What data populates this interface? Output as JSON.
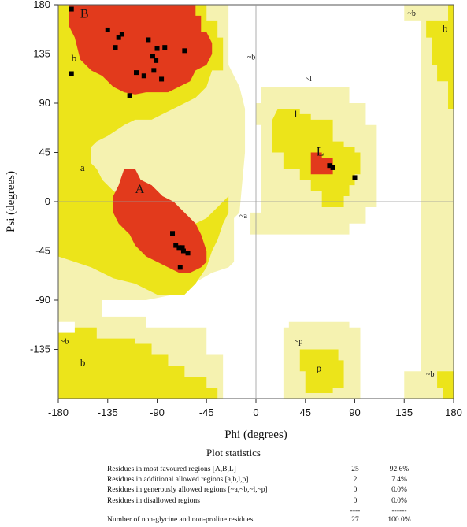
{
  "chart_data": {
    "type": "scatter",
    "title": "",
    "xlabel": "Phi (degrees)",
    "ylabel": "Psi (degrees)",
    "xlim": [
      -180,
      180
    ],
    "ylim": [
      -180,
      180
    ],
    "xticks": [
      -180,
      -135,
      -90,
      -45,
      0,
      45,
      90,
      135,
      180
    ],
    "yticks": [
      180,
      135,
      90,
      45,
      0,
      -45,
      -90,
      -135
    ],
    "grid": false,
    "colors": {
      "most_favoured": "#e23a1c",
      "additional": "#ece41a",
      "generous": "#f5f2b0",
      "disallowed": "#ffffff",
      "point": "#000000"
    },
    "region_labels": [
      {
        "text": "B",
        "phi": -160,
        "psi": 168
      },
      {
        "text": "b",
        "phi": -168,
        "psi": 128
      },
      {
        "text": "~b",
        "phi": -8,
        "psi": 130
      },
      {
        "text": "a",
        "phi": -160,
        "psi": 28
      },
      {
        "text": "A",
        "phi": -110,
        "psi": 8
      },
      {
        "text": "~a",
        "phi": -15,
        "psi": -15
      },
      {
        "text": "~l",
        "phi": 45,
        "psi": 110
      },
      {
        "text": "l",
        "phi": 35,
        "psi": 77
      },
      {
        "text": "L",
        "phi": 55,
        "psi": 42
      },
      {
        "text": "~b",
        "phi": 138,
        "psi": 170
      },
      {
        "text": "b",
        "phi": 170,
        "psi": 155
      },
      {
        "text": "~b",
        "phi": -178,
        "psi": -130
      },
      {
        "text": "b",
        "phi": -160,
        "psi": -150
      },
      {
        "text": "~p",
        "phi": 35,
        "psi": -130
      },
      {
        "text": "p",
        "phi": 55,
        "psi": -155
      },
      {
        "text": "~b",
        "phi": 155,
        "psi": -160
      }
    ],
    "points": [
      {
        "phi": -168,
        "psi": 176
      },
      {
        "phi": -168,
        "psi": 117
      },
      {
        "phi": -135,
        "psi": 157
      },
      {
        "phi": -125,
        "psi": 150
      },
      {
        "phi": -122,
        "psi": 153
      },
      {
        "phi": -128,
        "psi": 141
      },
      {
        "phi": -98,
        "psi": 148
      },
      {
        "phi": -90,
        "psi": 140
      },
      {
        "phi": -83,
        "psi": 141
      },
      {
        "phi": -94,
        "psi": 133
      },
      {
        "phi": -91,
        "psi": 129
      },
      {
        "phi": -65,
        "psi": 138
      },
      {
        "phi": -109,
        "psi": 118
      },
      {
        "phi": -102,
        "psi": 115
      },
      {
        "phi": -93,
        "psi": 120
      },
      {
        "phi": -86,
        "psi": 112
      },
      {
        "phi": -115,
        "psi": 97
      },
      {
        "phi": -76,
        "psi": -29
      },
      {
        "phi": -73,
        "psi": -40
      },
      {
        "phi": -70,
        "psi": -42
      },
      {
        "phi": -67,
        "psi": -42
      },
      {
        "phi": -66,
        "psi": -45
      },
      {
        "phi": -62,
        "psi": -47
      },
      {
        "phi": -69,
        "psi": -60
      },
      {
        "phi": 67,
        "psi": 33
      },
      {
        "phi": 70,
        "psi": 31
      },
      {
        "phi": 90,
        "psi": 22
      }
    ]
  },
  "stats": {
    "title": "Plot statistics",
    "rows": [
      {
        "label": "Residues in most favoured regions  [A,B,L]",
        "count": "25",
        "percent": "92.6%"
      },
      {
        "label": "Residues in additional allowed regions  [a,b,l,p]",
        "count": "2",
        "percent": "7.4%"
      },
      {
        "label": "Residues in generously allowed regions  [~a,~b,~l,~p]",
        "count": "0",
        "percent": "0.0%"
      },
      {
        "label": "Residues in disallowed regions",
        "count": "0",
        "percent": "0.0%"
      }
    ],
    "separator_count": "----",
    "separator_percent": "------",
    "total": {
      "label": "Number of non-glycine and non-proline residues",
      "count": "27",
      "percent": "100.0%"
    }
  }
}
